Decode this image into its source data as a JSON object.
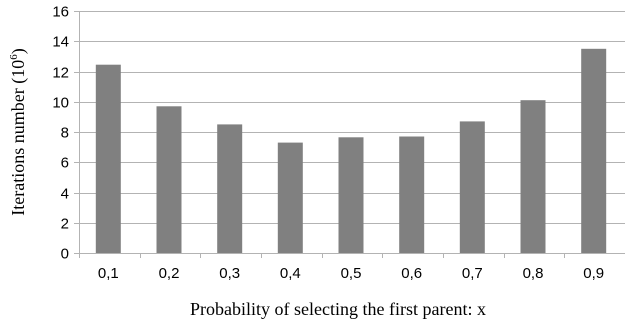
{
  "chart_data": {
    "type": "bar",
    "categories": [
      "0,1",
      "0,2",
      "0,3",
      "0,4",
      "0,5",
      "0,6",
      "0,7",
      "0,8",
      "0,9"
    ],
    "values": [
      12.45,
      9.7,
      8.5,
      7.3,
      7.65,
      7.7,
      8.7,
      10.1,
      13.5
    ],
    "title": "",
    "xlabel": "Probability of selecting the first parent: x",
    "ylabel": {
      "base": "Iterations number (10",
      "exponent": "6",
      "suffix": ")"
    },
    "ylim": [
      0,
      16
    ],
    "yticks": [
      "0",
      "2",
      "4",
      "6",
      "8",
      "10",
      "12",
      "14",
      "16"
    ],
    "grid": true,
    "legend": "none",
    "colors": {
      "bar": "#808080",
      "grid": "#b3b3b3",
      "axis": "#b3b3b3"
    }
  }
}
